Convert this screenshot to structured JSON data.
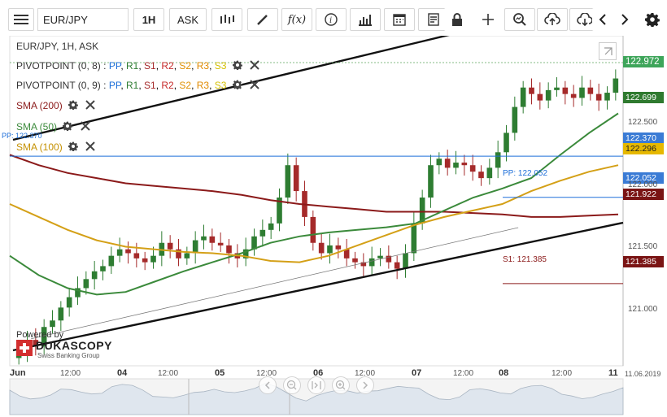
{
  "toolbar": {
    "menu_icon": "hamburger-icon",
    "symbol": "EUR/JPY",
    "period": "1H",
    "side": "ASK",
    "buttons": [
      "chart-type-icon",
      "draw-icon",
      "indicator-icon",
      "info-icon",
      "volume-icon",
      "calendar-icon",
      "report-icon",
      "lock-icon",
      "crosshair-icon",
      "zoom-icon",
      "upload-icon",
      "download-icon",
      "chevron-left-icon",
      "chevron-right-icon",
      "gear-icon"
    ]
  },
  "legend": {
    "instrument": "EUR/JPY, 1H, ASK",
    "pivot1": {
      "name": "PIVOTPOINT (0, 8)",
      "sep": ":",
      "pp": "PP",
      "r1": "R1",
      "s1": "S1",
      "r2": "R2",
      "s2": "S2",
      "r3": "R3",
      "s3": "S3"
    },
    "pivot2": {
      "name": "PIVOTPOINT (0, 9)",
      "sep": ":",
      "pp": "PP",
      "r1": "R1",
      "s1": "S1",
      "r2": "R2",
      "s2": "S2",
      "r3": "R3",
      "s3": "S3"
    },
    "sma200": "SMA (200)",
    "sma50": "SMA (50)",
    "sma100": "SMA (100)"
  },
  "colors": {
    "up": "#2e7d32",
    "down": "#a52a2a",
    "sma200": "#8b1a1a",
    "sma50": "#3b8a3b",
    "sma100": "#d4a017",
    "pp": "#1e6fd9",
    "r1": "#2e7d32",
    "s1": "#a52a2a",
    "r2": "#c62828",
    "s2": "#e09000",
    "r3": "#e08a00",
    "s3": "#d4c000"
  },
  "annotations": {
    "pp_left": "PP: 122.370",
    "pp_right": "PP: 122.052",
    "s1_right": "S1: 121.385"
  },
  "price_boxes": {
    "last": "122.972",
    "sma50": "122.699",
    "pp1": "122.370",
    "sma100": "122.296",
    "pp2": "122.052",
    "sma200": "121.922",
    "s1": "121.385"
  },
  "watermark": {
    "powered": "Powered by",
    "brand": "DUKASCOPY",
    "tagline": "Swiss Banking Group"
  },
  "chart_data": {
    "type": "line",
    "title": "EUR/JPY, 1H, ASK",
    "y_ticks": [
      "122.500",
      "122.000",
      "121.500",
      "121.000"
    ],
    "x_ticks": [
      "Jun",
      "12:00",
      "04",
      "12:00",
      "05",
      "12:00",
      "06",
      "12:00",
      "07",
      "12:00",
      "08",
      "12:00",
      "11",
      "11.06.2019"
    ],
    "ylim": [
      120.75,
      123.3
    ],
    "candles_close": [
      120.86,
      120.95,
      120.9,
      121.05,
      121.1,
      121.2,
      121.28,
      121.35,
      121.42,
      121.48,
      121.52,
      121.6,
      121.65,
      121.62,
      121.58,
      121.55,
      121.6,
      121.7,
      121.65,
      121.58,
      121.62,
      121.72,
      121.75,
      121.7,
      121.68,
      121.62,
      121.58,
      121.65,
      121.75,
      121.8,
      121.85,
      122.05,
      122.3,
      122.1,
      121.9,
      121.7,
      121.62,
      121.68,
      121.65,
      121.58,
      121.55,
      121.52,
      121.58,
      121.6,
      121.55,
      121.5,
      121.62,
      121.85,
      122.05,
      122.3,
      122.35,
      122.28,
      122.32,
      122.3,
      122.25,
      122.2,
      122.28,
      122.4,
      122.55,
      122.75,
      122.9,
      122.85,
      122.8,
      122.88,
      122.9,
      122.85,
      122.82,
      122.9,
      122.85,
      122.8,
      122.86,
      122.97
    ],
    "series": [
      {
        "name": "SMA (200)",
        "values": [
          122.38,
          122.3,
          122.24,
          122.2,
          122.16,
          122.14,
          122.12,
          122.1,
          122.07,
          122.03,
          122.0,
          121.98,
          121.96,
          121.94,
          121.94,
          121.94,
          121.93,
          121.92,
          121.9,
          121.9,
          121.91,
          121.92
        ]
      },
      {
        "name": "SMA (50)",
        "values": [
          121.6,
          121.45,
          121.35,
          121.3,
          121.32,
          121.4,
          121.48,
          121.55,
          121.62,
          121.7,
          121.75,
          121.78,
          121.8,
          121.82,
          121.85,
          121.95,
          122.05,
          122.12,
          122.2,
          122.38,
          122.55,
          122.7
        ]
      },
      {
        "name": "SMA (100)",
        "values": [
          122.0,
          121.9,
          121.8,
          121.72,
          121.67,
          121.65,
          121.63,
          121.62,
          121.6,
          121.56,
          121.55,
          121.6,
          121.68,
          121.76,
          121.84,
          121.9,
          121.95,
          122.0,
          122.1,
          122.18,
          122.25,
          122.3
        ]
      }
    ],
    "horizontal_levels": [
      {
        "label": "PP",
        "value": 122.37
      },
      {
        "label": "PP",
        "value": 122.052
      },
      {
        "label": "S1",
        "value": 121.385
      }
    ],
    "grid": false,
    "legend_position": "top-left"
  }
}
